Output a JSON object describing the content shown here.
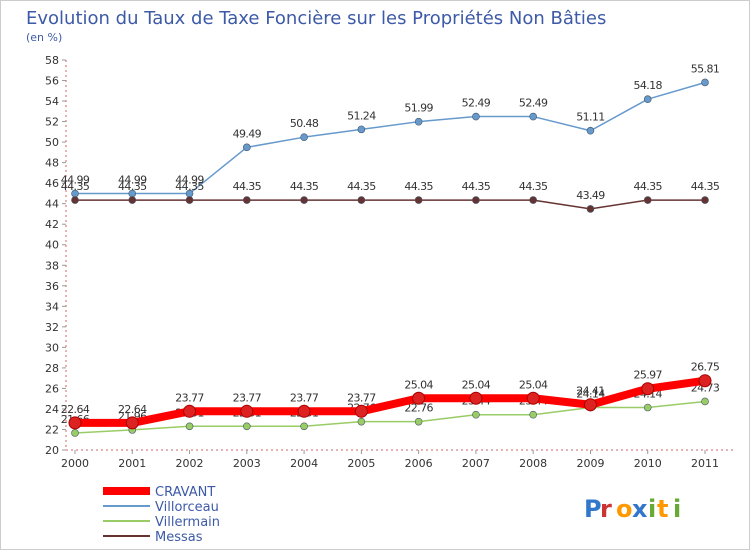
{
  "chart_data": {
    "type": "line",
    "title": "Evolution du Taux de Taxe Foncière sur les Propriétés Non Bâties",
    "subtitle": "(en %)",
    "x": [
      "2000",
      "2001",
      "2002",
      "2003",
      "2004",
      "2005",
      "2006",
      "2007",
      "2008",
      "2009",
      "2010",
      "2011"
    ],
    "ylim": [
      20,
      58
    ],
    "yticks": [
      "20",
      "22",
      "24",
      "26",
      "28",
      "30",
      "32",
      "34",
      "36",
      "38",
      "40",
      "42",
      "44",
      "46",
      "48",
      "50",
      "52",
      "54",
      "56",
      "58"
    ],
    "grid": false,
    "legend_position": "bottom-left",
    "series": [
      {
        "name": "CRAVANT",
        "color": "#ff0000",
        "values": [
          22.64,
          22.64,
          23.77,
          23.77,
          23.77,
          23.77,
          25.04,
          25.04,
          25.04,
          24.41,
          25.97,
          26.75
        ],
        "labels": [
          "22.64",
          "22.64",
          "23.77",
          "23.77",
          "23.77",
          "23.77",
          "25.04",
          "25.04",
          "25.04",
          "24.41",
          "25.97",
          "26.75"
        ]
      },
      {
        "name": "Villorceau",
        "color": "#6699cc",
        "values": [
          44.99,
          44.99,
          44.99,
          49.49,
          50.48,
          51.24,
          51.99,
          52.49,
          52.49,
          51.11,
          54.18,
          55.81
        ],
        "labels": [
          "44.99",
          "44.99",
          "44.99",
          "49.49",
          "50.48",
          "51.24",
          "51.99",
          "52.49",
          "52.49",
          "51.11",
          "54.18",
          "55.81"
        ]
      },
      {
        "name": "Villermain",
        "color": "#99cc66",
        "values": [
          21.66,
          21.96,
          22.31,
          22.31,
          22.31,
          22.76,
          22.76,
          23.44,
          23.44,
          24.14,
          24.14,
          24.73
        ],
        "labels": [
          "21.66",
          "21.96",
          "22.31",
          "22.31",
          "22.31",
          "22.76",
          "22.76",
          "23.44",
          "23.44",
          "24.14",
          "24.14",
          "24.73"
        ]
      },
      {
        "name": "Messas",
        "color": "#663333",
        "values": [
          44.35,
          44.35,
          44.35,
          44.35,
          44.35,
          44.35,
          44.35,
          44.35,
          44.35,
          43.49,
          44.35,
          44.35
        ],
        "labels": [
          "44.35",
          "44.35",
          "44.35",
          "44.35",
          "44.35",
          "44.35",
          "44.35",
          "44.35",
          "44.35",
          "43.49",
          "44.35",
          "44.35"
        ]
      }
    ]
  },
  "watermark": {
    "text": "Proxiti",
    "letter_colors": [
      "#3377cc",
      "#cc3333",
      "#ff9900",
      "#3377cc",
      "#66aa33",
      "#ff9900",
      "#66aa33"
    ]
  }
}
